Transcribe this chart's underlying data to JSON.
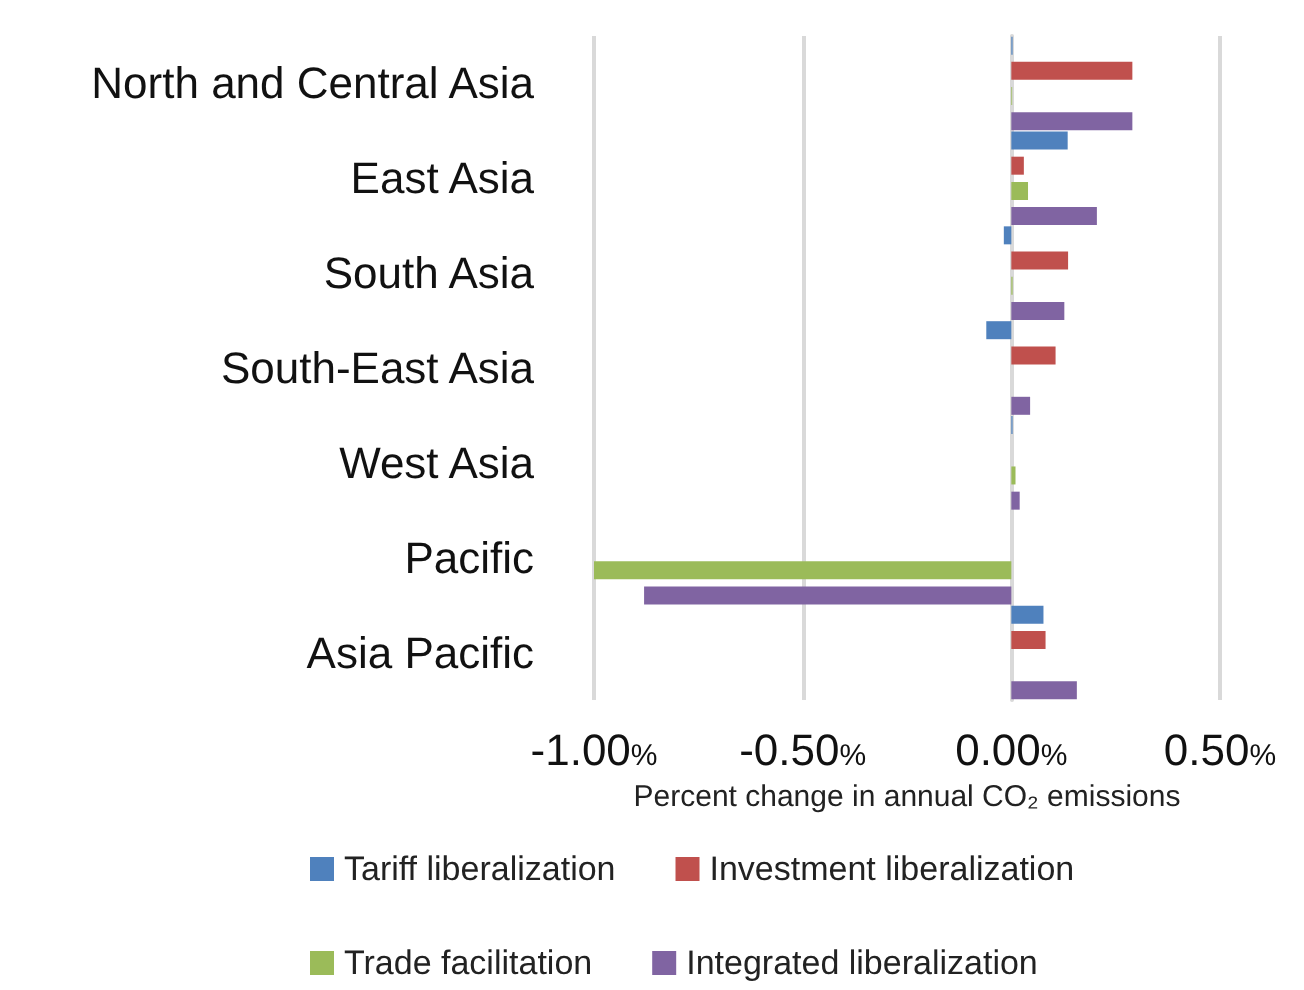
{
  "chart_data": {
    "type": "bar",
    "orientation": "horizontal",
    "xlabel": "Percent change in annual CO₂ emissions",
    "categories": [
      "North and Central Asia",
      "East Asia",
      "South Asia",
      "South-East Asia",
      "West Asia",
      "Pacific",
      "Asia Pacific"
    ],
    "series": [
      {
        "name": "Tariff liberalization",
        "color": "#4f81bd",
        "values": [
          0.003,
          0.135,
          -0.018,
          -0.06,
          0.003,
          0,
          0.077
        ]
      },
      {
        "name": "Investment liberalization",
        "color": "#c0504d",
        "values": [
          0.29,
          0.03,
          0.136,
          0.106,
          0,
          0,
          0.082
        ]
      },
      {
        "name": "Trade facilitation",
        "color": "#9bbb59",
        "values": [
          0.002,
          0.04,
          0.003,
          0,
          0.01,
          -1.0,
          0
        ]
      },
      {
        "name": "Integrated liberalization",
        "color": "#8064a2",
        "values": [
          0.29,
          0.205,
          0.127,
          0.045,
          0.02,
          -0.88,
          0.157
        ]
      }
    ],
    "xlim": [
      -1,
      0.5
    ],
    "xticks": [
      {
        "value": -1,
        "label": "-1.00%"
      },
      {
        "value": -0.5,
        "label": "-0.50%"
      },
      {
        "value": 0,
        "label": "0.00%"
      },
      {
        "value": 0.5,
        "label": "0.50%"
      }
    ],
    "grid": "x",
    "legend": "bottom"
  }
}
